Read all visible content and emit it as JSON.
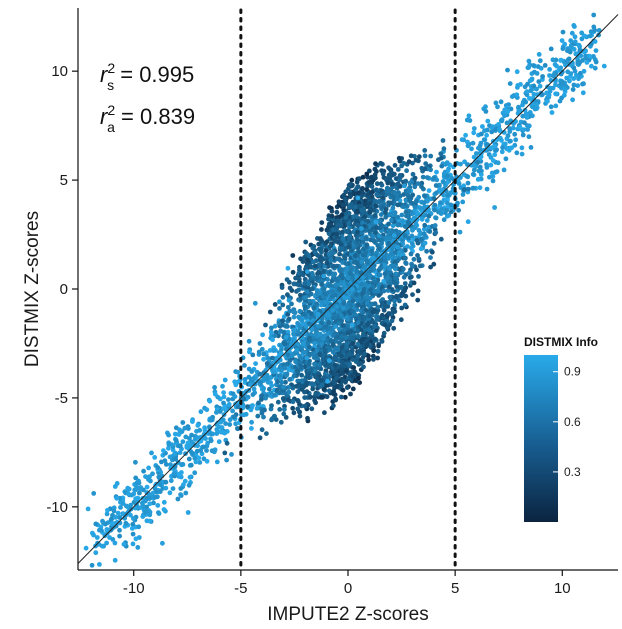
{
  "chart_data": {
    "type": "scatter",
    "title": "",
    "xlabel": "IMPUTE2 Z-scores",
    "ylabel": "DISTMIX Z-scores",
    "xlim": [
      -12.6,
      12.6
    ],
    "ylim": [
      -12.9,
      12.9
    ],
    "x_ticks": [
      -10,
      -5,
      0,
      5,
      10
    ],
    "x_tick_labels": [
      "-10",
      "-5",
      "0",
      "5",
      "10"
    ],
    "y_ticks": [
      -10,
      -5,
      0,
      5,
      10
    ],
    "y_tick_labels": [
      "-10",
      "-5",
      "0",
      "5",
      "10"
    ],
    "grid": false,
    "reference_line": {
      "type": "identity",
      "slope": 1,
      "intercept": 0
    },
    "vertical_dotted_lines": [
      -5,
      5
    ],
    "point_cloud": {
      "description_components": [
        {
          "kind": "diagonal_band",
          "x_range": [
            -11.5,
            11.5
          ],
          "spread": 0.7,
          "n": 1500
        },
        {
          "kind": "central_blob",
          "center": [
            0,
            0
          ],
          "x_spread": 4.5,
          "n": 2600
        }
      ],
      "color_variable": "DISTMIX Info",
      "color_range": [
        0.0,
        1.0
      ]
    },
    "annotations": [
      {
        "symbol": "r",
        "subscript": "s",
        "superscript": "2",
        "text": " = 0.995"
      },
      {
        "symbol": "r",
        "subscript": "a",
        "superscript": "2",
        "text": " = 0.839"
      }
    ],
    "legend": {
      "title": "DISTMIX Info",
      "placement": "right",
      "ticks": [
        0.3,
        0.6,
        0.9
      ],
      "tick_labels": [
        "0.3",
        "0.6",
        "0.9"
      ],
      "color_low": "#0b2440",
      "color_high": "#29aaea"
    }
  }
}
